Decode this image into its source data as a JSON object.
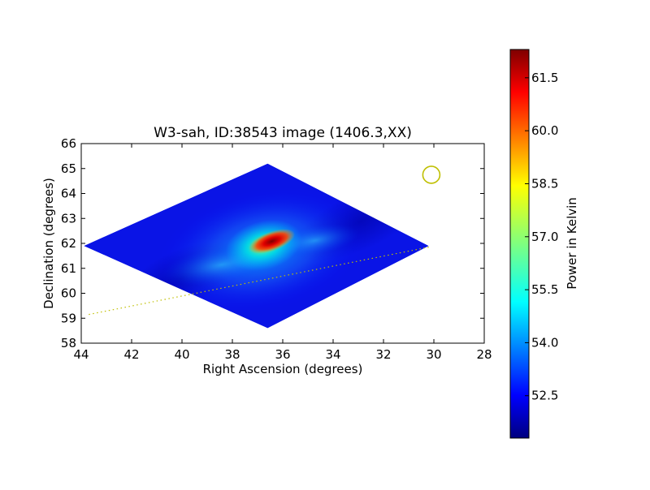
{
  "chart_data": {
    "type": "heatmap",
    "title": "W3-sah, ID:38543 image (1406.3,XX)",
    "xlabel": "Right Ascension (degrees)",
    "ylabel": "Declination (degrees)",
    "xlim": [
      44,
      28
    ],
    "ylim": [
      58,
      66
    ],
    "x_ticks": [
      44,
      42,
      40,
      38,
      36,
      34,
      32,
      30,
      28
    ],
    "y_ticks": [
      58,
      59,
      60,
      61,
      62,
      63,
      64,
      65,
      66
    ],
    "colorbar": {
      "label": "Power in Kelvin",
      "range": [
        51.3,
        62.3
      ],
      "ticks": [
        "52.5",
        "54.0",
        "55.5",
        "57.0",
        "58.5",
        "60.0",
        "61.5"
      ],
      "colormap": "jet"
    },
    "map_footprint": [
      [
        36.6,
        65.2
      ],
      [
        30.2,
        61.9
      ],
      [
        36.6,
        58.6
      ],
      [
        43.9,
        61.9
      ]
    ],
    "peak": {
      "ra": 36.5,
      "dec": 62.05,
      "value": 62.2
    },
    "beam_marker": {
      "ra": 30.1,
      "dec": 64.75,
      "color": "#bfbf00"
    },
    "dotted_track": {
      "points": [
        [
          43.7,
          59.15
        ],
        [
          30.2,
          61.85
        ]
      ],
      "color": "#bfbf00"
    }
  }
}
